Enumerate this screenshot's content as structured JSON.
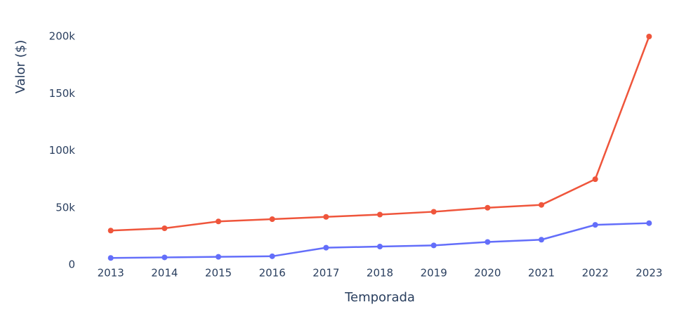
{
  "chart_data": {
    "type": "line",
    "x_label": "Temporada",
    "y_label": "Valor ($)",
    "x": [
      2013,
      2014,
      2015,
      2016,
      2017,
      2018,
      2019,
      2020,
      2021,
      2022,
      2023
    ],
    "series": [
      {
        "color": "#EF553B",
        "values": [
          30000,
          32000,
          38000,
          40000,
          42000,
          44000,
          46500,
          50000,
          52500,
          75000,
          200000
        ]
      },
      {
        "color": "#636EFA",
        "values": [
          6000,
          6500,
          7000,
          7500,
          15000,
          16000,
          17000,
          20000,
          22000,
          35000,
          36500
        ]
      }
    ],
    "xlim": [
      2012.6,
      2023.4
    ],
    "xticks": [
      2013,
      2014,
      2015,
      2016,
      2017,
      2018,
      2019,
      2020,
      2021,
      2022,
      2023
    ],
    "ylim": [
      0,
      210000
    ],
    "yticks": [
      0,
      {
        "value": 50000,
        "label": "50k"
      },
      {
        "value": 100000,
        "label": "100k"
      },
      {
        "value": 150000,
        "label": "150k"
      },
      {
        "value": 200000,
        "label": "200k"
      }
    ],
    "grid": false
  }
}
